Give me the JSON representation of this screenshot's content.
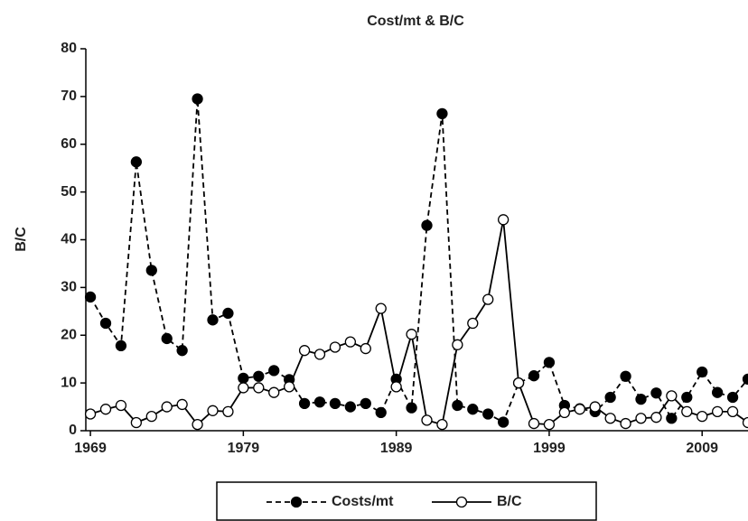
{
  "chart_data": {
    "type": "line",
    "title": "Cost/mt & B/C",
    "y_label": "B/C",
    "x": [
      1969,
      1970,
      1971,
      1972,
      1973,
      1974,
      1975,
      1976,
      1977,
      1978,
      1979,
      1980,
      1981,
      1982,
      1983,
      1984,
      1985,
      1986,
      1987,
      1988,
      1989,
      1990,
      1991,
      1992,
      1993,
      1994,
      1995,
      1996,
      1997,
      1998,
      1999,
      2000,
      2001,
      2002,
      2003,
      2004,
      2005,
      2006,
      2007,
      2008,
      2009,
      2010,
      2011,
      2012
    ],
    "series": [
      {
        "name": "Costs/mt",
        "color": "#000000",
        "marker_fill": "#000000",
        "line_style": "dashed",
        "values": [
          28,
          22.5,
          17.8,
          56.3,
          33.6,
          19.3,
          16.8,
          69.5,
          23.2,
          24.6,
          11,
          11.4,
          12.6,
          10.7,
          5.7,
          6,
          5.7,
          5,
          5.7,
          3.8,
          10.8,
          4.8,
          43,
          66.4,
          5.3,
          4.5,
          3.5,
          1.8,
          10,
          11.5,
          14.3,
          5.3,
          4.6,
          4,
          7,
          11.4,
          6.6,
          7.9,
          2.6,
          7,
          12.3,
          8,
          7,
          10.8
        ]
      },
      {
        "name": "B/C",
        "color": "#000000",
        "marker_fill": "#ffffff",
        "line_style": "solid",
        "values": [
          3.5,
          4.5,
          5.3,
          1.7,
          3,
          5,
          5.5,
          1.3,
          4.2,
          4,
          9,
          9,
          8,
          9.2,
          16.8,
          16,
          17.5,
          18.6,
          17.2,
          25.6,
          9.2,
          20.2,
          2.2,
          1.3,
          18,
          22.5,
          27.5,
          44.2,
          10,
          1.5,
          1.3,
          3.8,
          4.5,
          5,
          2.6,
          1.5,
          2.6,
          2.8,
          7.3,
          4,
          3,
          4,
          4,
          1.7
        ]
      }
    ],
    "xlim": [
      1968.7,
      2012
    ],
    "xticks": [
      1969,
      1979,
      1989,
      1999,
      2009
    ],
    "ylim": [
      0,
      80
    ],
    "yticks": [
      0,
      10,
      20,
      30,
      40,
      50,
      60,
      70,
      80
    ],
    "legend": "bottom"
  }
}
